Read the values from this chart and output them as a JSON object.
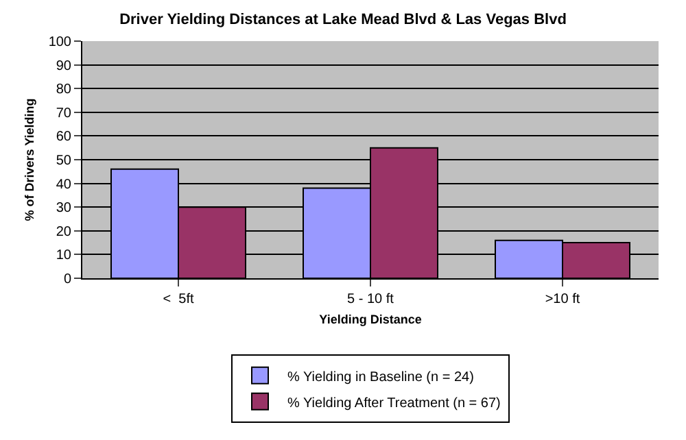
{
  "chart_data": {
    "type": "bar",
    "title": "Driver Yielding Distances at Lake Mead Blvd & Las Vegas Blvd",
    "xlabel": "Yielding Distance",
    "ylabel": "% of Drivers Yielding",
    "categories": [
      "<  5ft",
      "5 - 10 ft",
      ">10 ft"
    ],
    "series": [
      {
        "name": "% Yielding in Baseline (n = 24)",
        "color": "#9999ff",
        "values": [
          46,
          38,
          16
        ]
      },
      {
        "name": "% Yielding After Treatment (n = 67)",
        "color": "#993366",
        "values": [
          30,
          55,
          15
        ]
      }
    ],
    "ylim": [
      0,
      100
    ],
    "yticks": [
      0,
      10,
      20,
      30,
      40,
      50,
      60,
      70,
      80,
      90,
      100
    ],
    "grid": "y",
    "legend": "bottom"
  }
}
